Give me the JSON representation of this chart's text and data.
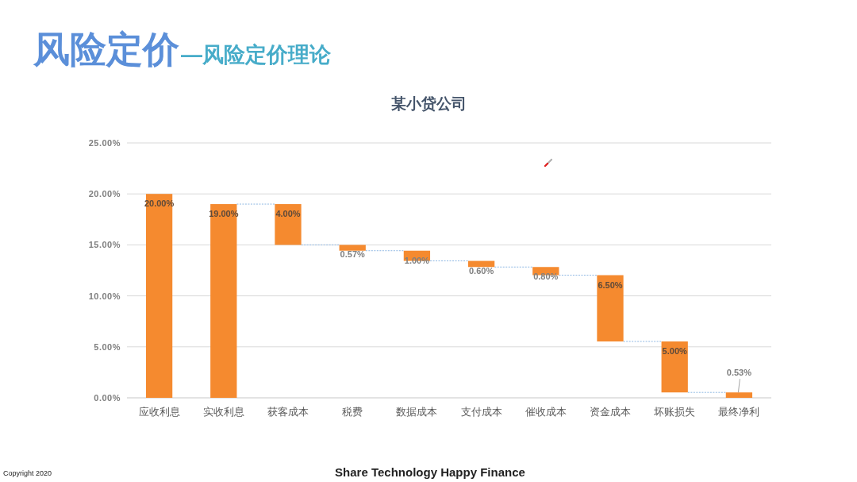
{
  "chart_data": {
    "type": "bar",
    "title": "某小贷公司",
    "categories": [
      "应收利息",
      "实收利息",
      "获客成本",
      "税费",
      "数据成本",
      "支付成本",
      "催收成本",
      "资金成本",
      "坏账损失",
      "最终净利"
    ],
    "values": [
      20,
      19,
      4,
      0.57,
      1,
      0.6,
      0.8,
      6.5,
      5,
      0.53
    ],
    "base": [
      0,
      0,
      15,
      14.43,
      13.43,
      12.83,
      12.03,
      5.53,
      0.53,
      0
    ],
    "value_labels": [
      "20.00%",
      "19.00%",
      "4.00%",
      "0.57%",
      "1.00%",
      "0.60%",
      "0.80%",
      "6.50%",
      "5.00%",
      "0.53%"
    ],
    "color": "#f58a2f",
    "ylim": [
      0,
      25
    ],
    "yticks": [
      {
        "value": 0,
        "label": "0.00%"
      },
      {
        "value": 5,
        "label": "5.00%"
      },
      {
        "value": 10,
        "label": "10.00%"
      },
      {
        "value": 15,
        "label": "15.00%"
      },
      {
        "value": 20,
        "label": "20.00%"
      },
      {
        "value": 25,
        "label": "25.00%"
      }
    ],
    "grid": "y",
    "annotations": [
      "风险定价",
      "—风险定价理论",
      "Share Technology Happy Finance",
      "Copyright 2020"
    ]
  }
}
